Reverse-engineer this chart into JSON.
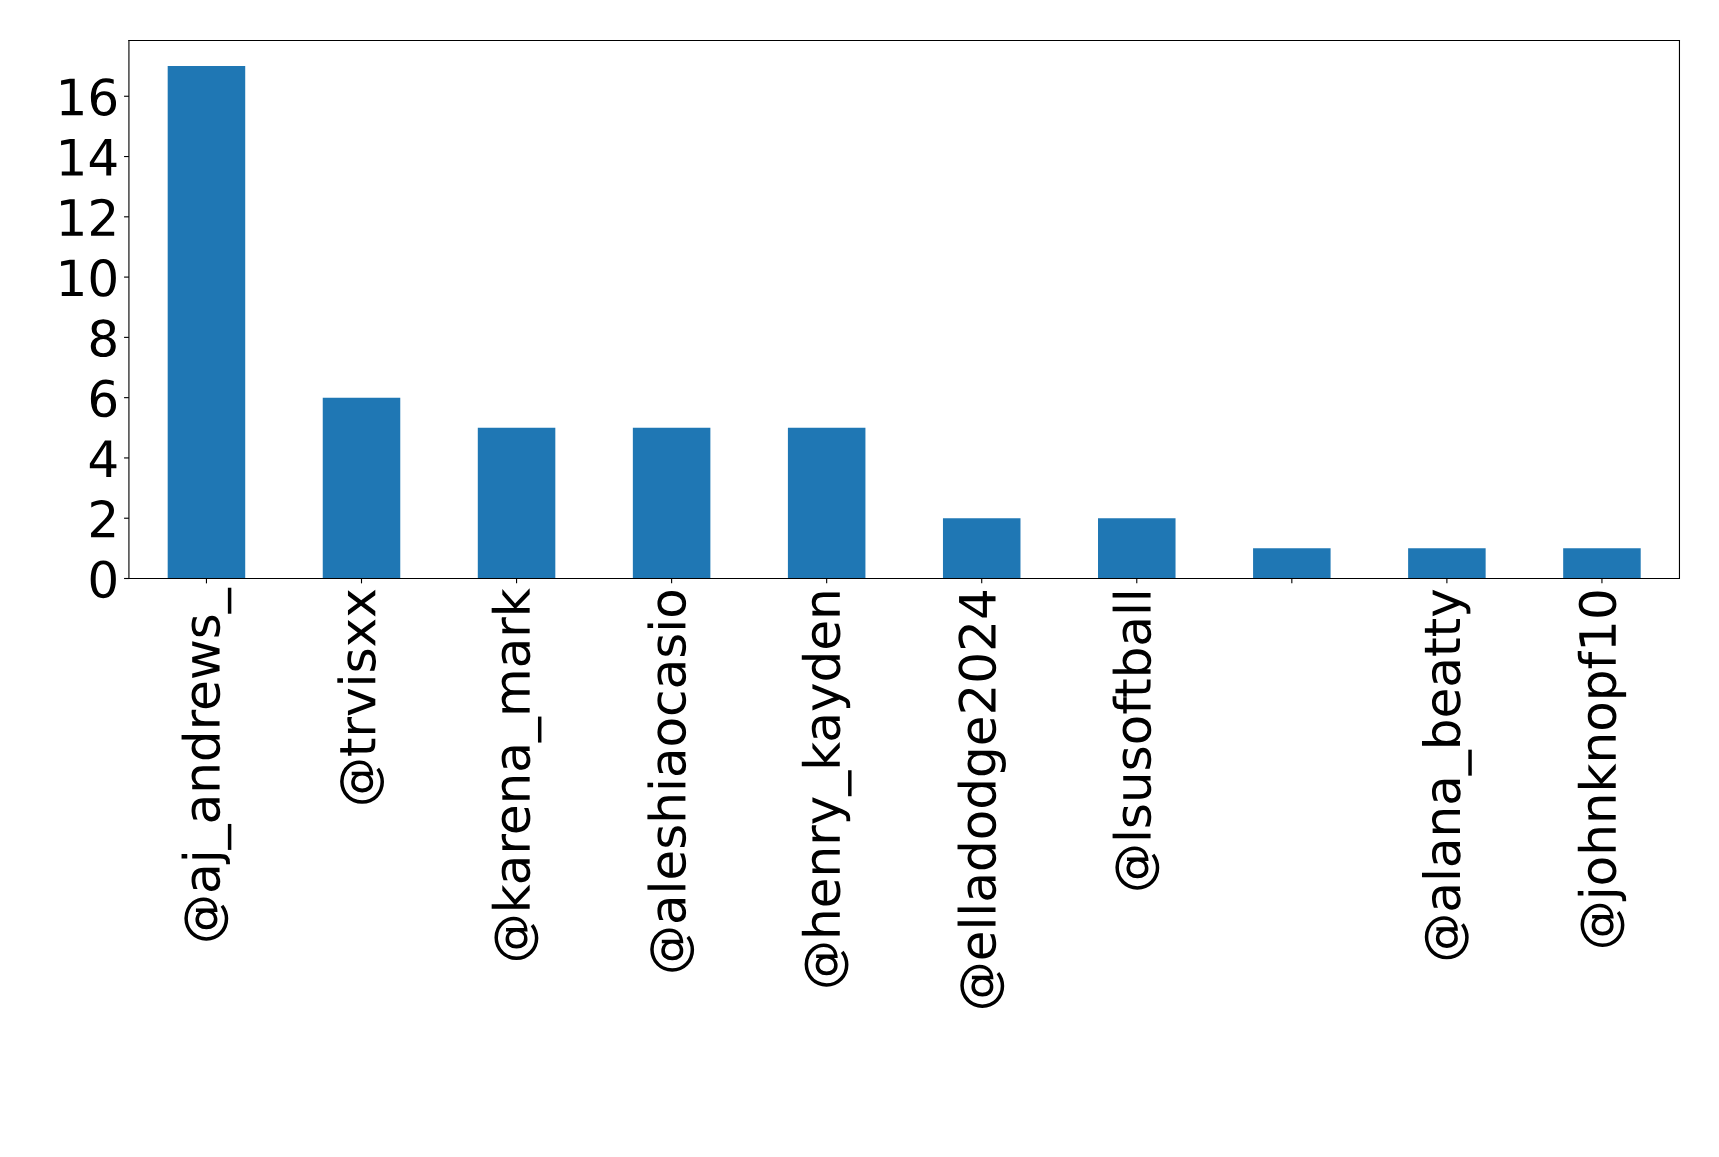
{
  "chart_data": {
    "type": "bar",
    "categories": [
      "@aj_andrews_",
      "@trvisxx",
      "@karena_mark",
      "@aleshiaocasio",
      "@henry_kayden",
      "@elladodge2024",
      "@lsusoftball",
      null,
      "@alana_beatty",
      "@johnknopf10"
    ],
    "values": [
      17,
      6,
      5,
      5,
      5,
      2,
      2,
      1,
      1,
      1
    ],
    "color": "#1f77b4",
    "ylim": [
      0,
      17.85
    ],
    "yticks": [
      0,
      2,
      4,
      6,
      8,
      10,
      12,
      14,
      16
    ],
    "grid": false,
    "legend": false
  }
}
